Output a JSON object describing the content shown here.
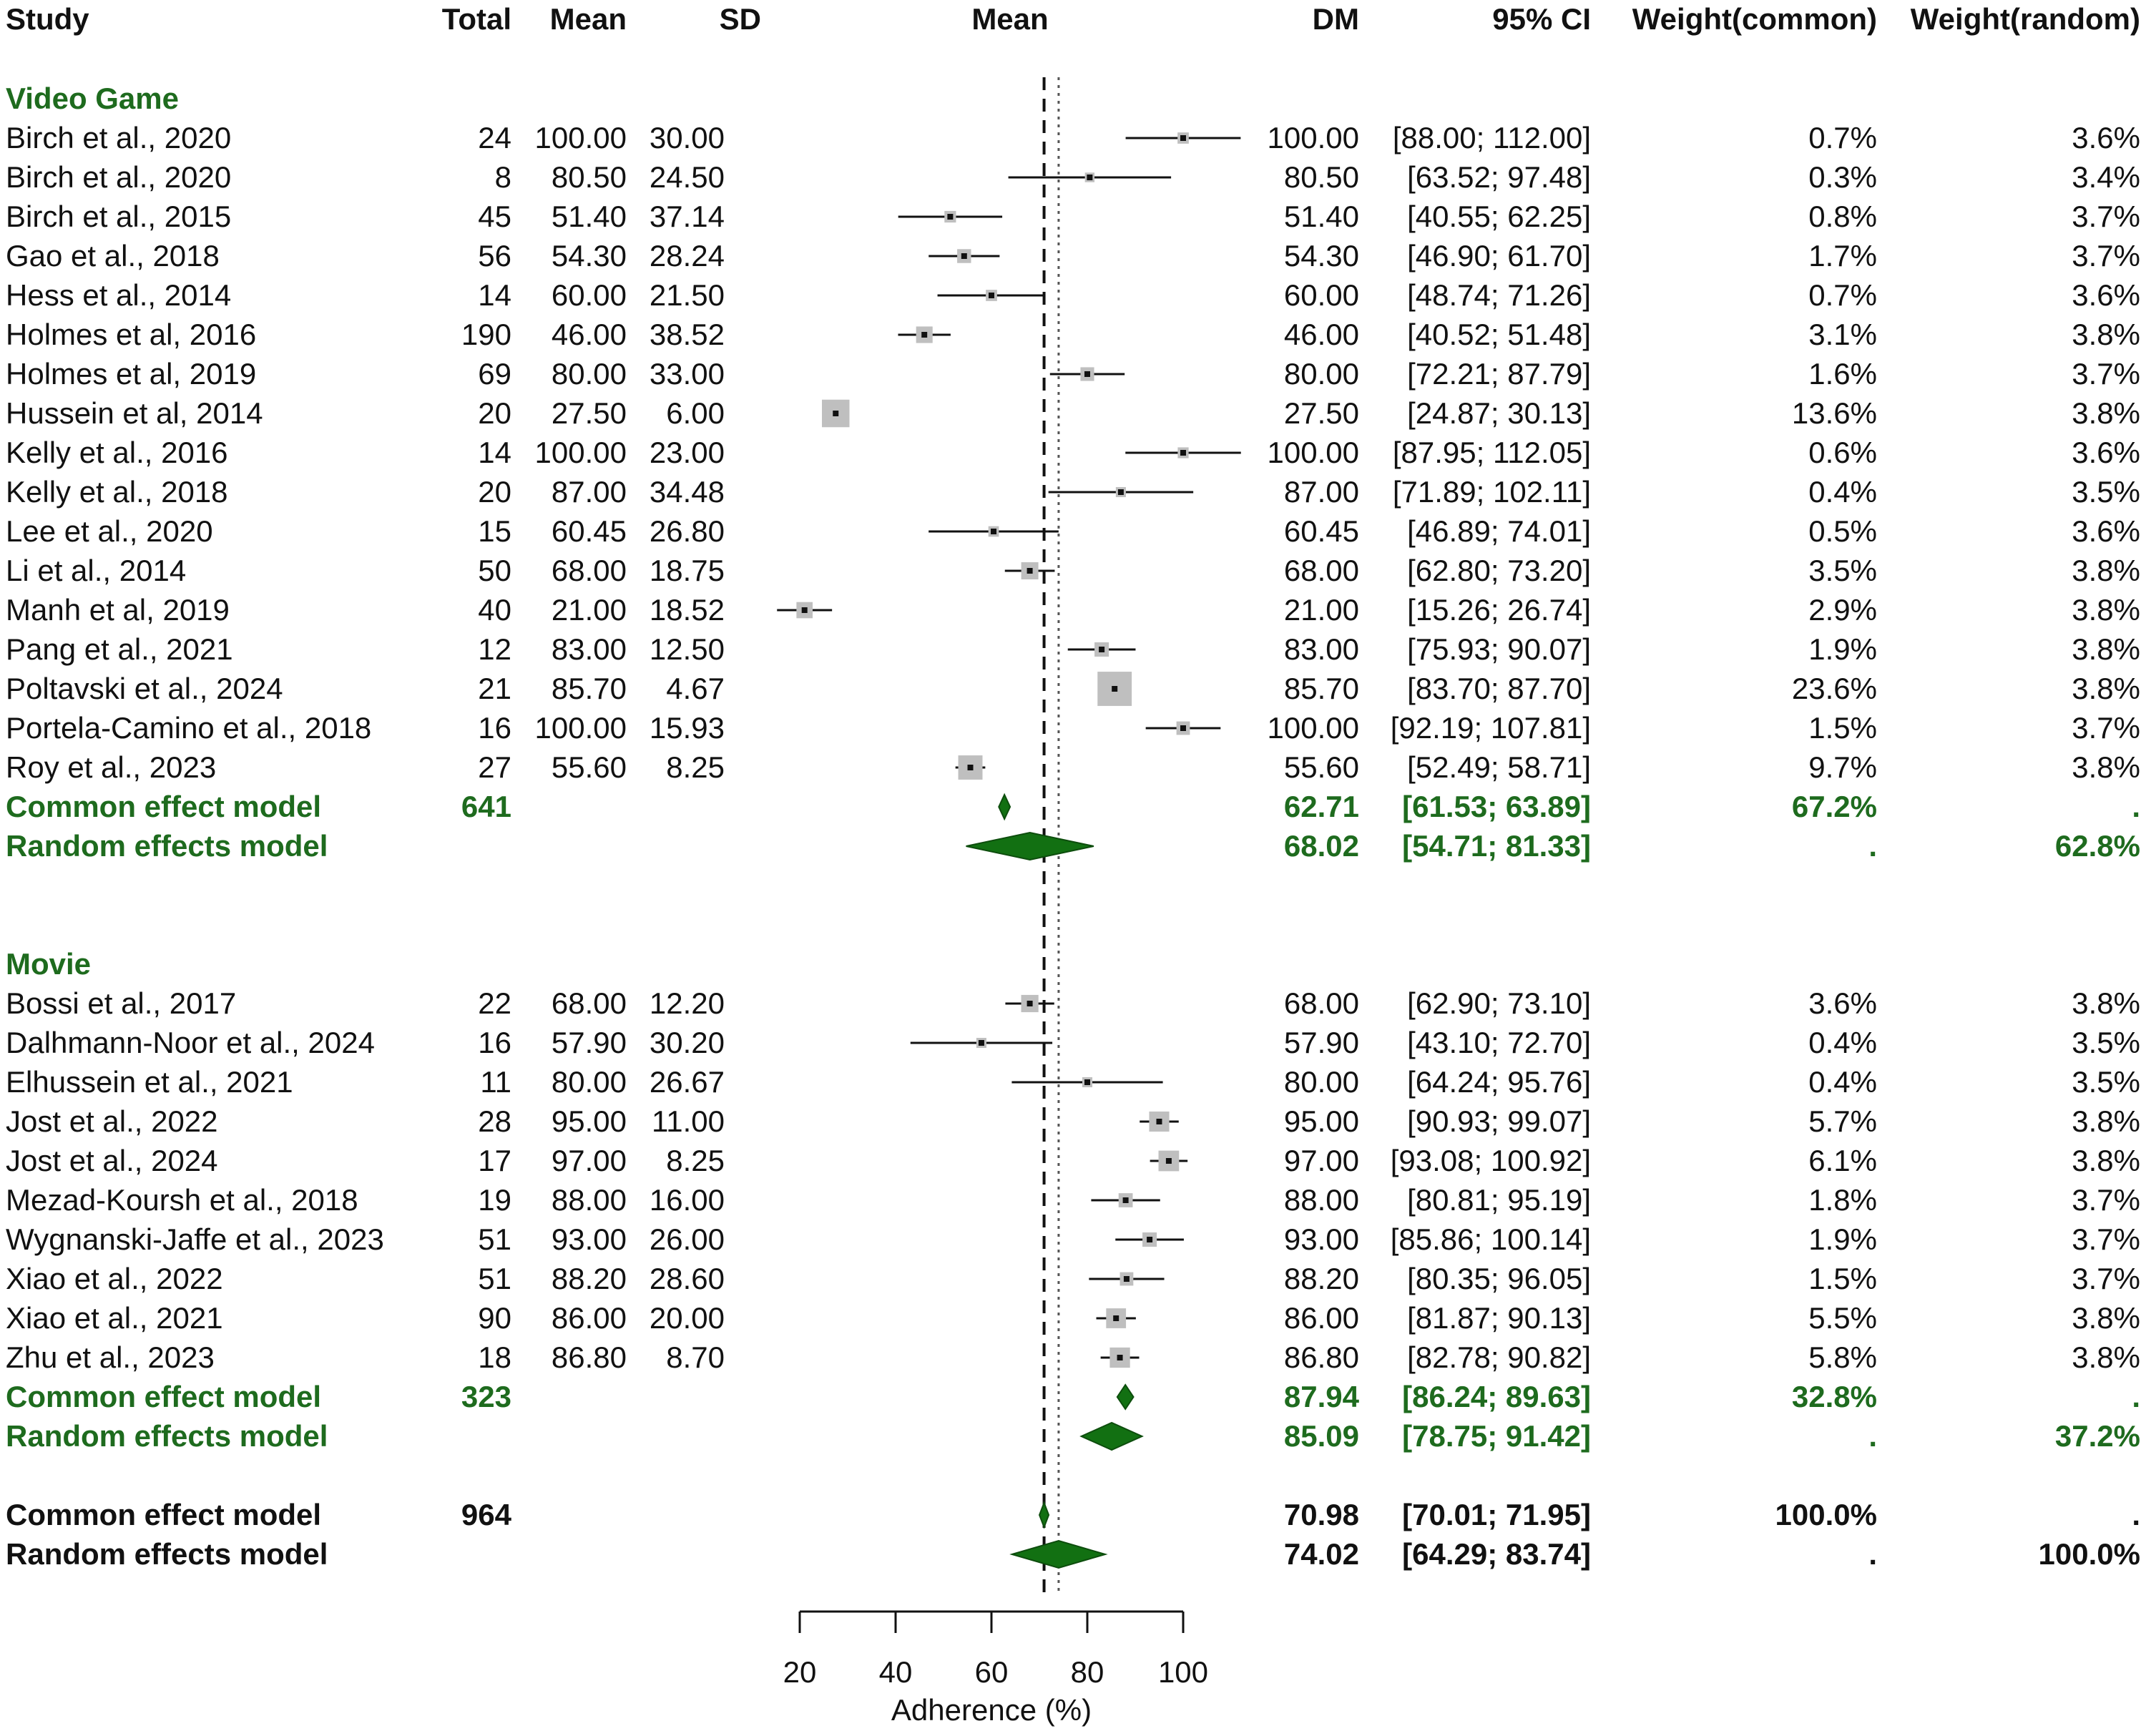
{
  "headers": {
    "study": "Study",
    "total": "Total",
    "mean": "Mean",
    "sd": "SD",
    "plot": "Mean",
    "dm": "DM",
    "ci": "95% CI",
    "wc": "Weight(common)",
    "wr": "Weight(random)"
  },
  "colors": {
    "group": "#1e6b1e",
    "diamond": "#127012",
    "box": "#bfbfbf",
    "text": "#111111"
  },
  "chart_data": {
    "type": "forest",
    "xlabel": "Adherence (%)",
    "xlim": [
      20,
      100
    ],
    "xticks": [
      20,
      40,
      60,
      80,
      100
    ],
    "reference_lines": {
      "common_dashed": 70.98,
      "random_dotted": 74.02
    },
    "groups": [
      {
        "name": "Video Game",
        "studies": [
          {
            "study": "Birch et al., 2020",
            "total": "24",
            "mean": "100.00",
            "sd": "30.00",
            "dm": "100.00",
            "ci": "[88.00; 112.00]",
            "wc": "0.7%",
            "wr": "3.6%",
            "est": 100.0,
            "lo": 88.0,
            "hi": 112.0,
            "w": 0.7
          },
          {
            "study": "Birch et al., 2020",
            "total": "8",
            "mean": "80.50",
            "sd": "24.50",
            "dm": "80.50",
            "ci": "[63.52; 97.48]",
            "wc": "0.3%",
            "wr": "3.4%",
            "est": 80.5,
            "lo": 63.52,
            "hi": 97.48,
            "w": 0.3
          },
          {
            "study": "Birch et al., 2015",
            "total": "45",
            "mean": "51.40",
            "sd": "37.14",
            "dm": "51.40",
            "ci": "[40.55; 62.25]",
            "wc": "0.8%",
            "wr": "3.7%",
            "est": 51.4,
            "lo": 40.55,
            "hi": 62.25,
            "w": 0.8
          },
          {
            "study": "Gao et al., 2018",
            "total": "56",
            "mean": "54.30",
            "sd": "28.24",
            "dm": "54.30",
            "ci": "[46.90; 61.70]",
            "wc": "1.7%",
            "wr": "3.7%",
            "est": 54.3,
            "lo": 46.9,
            "hi": 61.7,
            "w": 1.7
          },
          {
            "study": "Hess et al., 2014",
            "total": "14",
            "mean": "60.00",
            "sd": "21.50",
            "dm": "60.00",
            "ci": "[48.74; 71.26]",
            "wc": "0.7%",
            "wr": "3.6%",
            "est": 60.0,
            "lo": 48.74,
            "hi": 71.26,
            "w": 0.7
          },
          {
            "study": "Holmes et al, 2016",
            "total": "190",
            "mean": "46.00",
            "sd": "38.52",
            "dm": "46.00",
            "ci": "[40.52; 51.48]",
            "wc": "3.1%",
            "wr": "3.8%",
            "est": 46.0,
            "lo": 40.52,
            "hi": 51.48,
            "w": 3.1
          },
          {
            "study": "Holmes et al, 2019",
            "total": "69",
            "mean": "80.00",
            "sd": "33.00",
            "dm": "80.00",
            "ci": "[72.21; 87.79]",
            "wc": "1.6%",
            "wr": "3.7%",
            "est": 80.0,
            "lo": 72.21,
            "hi": 87.79,
            "w": 1.6
          },
          {
            "study": "Hussein et al, 2014",
            "total": "20",
            "mean": "27.50",
            "sd": "6.00",
            "dm": "27.50",
            "ci": "[24.87; 30.13]",
            "wc": "13.6%",
            "wr": "3.8%",
            "est": 27.5,
            "lo": 24.87,
            "hi": 30.13,
            "w": 13.6
          },
          {
            "study": "Kelly et al., 2016",
            "total": "14",
            "mean": "100.00",
            "sd": "23.00",
            "dm": "100.00",
            "ci": "[87.95; 112.05]",
            "wc": "0.6%",
            "wr": "3.6%",
            "est": 100.0,
            "lo": 87.95,
            "hi": 112.05,
            "w": 0.6
          },
          {
            "study": "Kelly et al., 2018",
            "total": "20",
            "mean": "87.00",
            "sd": "34.48",
            "dm": "87.00",
            "ci": "[71.89; 102.11]",
            "wc": "0.4%",
            "wr": "3.5%",
            "est": 87.0,
            "lo": 71.89,
            "hi": 102.11,
            "w": 0.4
          },
          {
            "study": "Lee et al., 2020",
            "total": "15",
            "mean": "60.45",
            "sd": "26.80",
            "dm": "60.45",
            "ci": "[46.89; 74.01]",
            "wc": "0.5%",
            "wr": "3.6%",
            "est": 60.45,
            "lo": 46.89,
            "hi": 74.01,
            "w": 0.5
          },
          {
            "study": "Li et al., 2014",
            "total": "50",
            "mean": "68.00",
            "sd": "18.75",
            "dm": "68.00",
            "ci": "[62.80; 73.20]",
            "wc": "3.5%",
            "wr": "3.8%",
            "est": 68.0,
            "lo": 62.8,
            "hi": 73.2,
            "w": 3.5
          },
          {
            "study": "Manh et al, 2019",
            "total": "40",
            "mean": "21.00",
            "sd": "18.52",
            "dm": "21.00",
            "ci": "[15.26; 26.74]",
            "wc": "2.9%",
            "wr": "3.8%",
            "est": 21.0,
            "lo": 15.26,
            "hi": 26.74,
            "w": 2.9
          },
          {
            "study": "Pang et al., 2021",
            "total": "12",
            "mean": "83.00",
            "sd": "12.50",
            "dm": "83.00",
            "ci": "[75.93; 90.07]",
            "wc": "1.9%",
            "wr": "3.8%",
            "est": 83.0,
            "lo": 75.93,
            "hi": 90.07,
            "w": 1.9
          },
          {
            "study": "Poltavski et al., 2024",
            "total": "21",
            "mean": "85.70",
            "sd": "4.67",
            "dm": "85.70",
            "ci": "[83.70; 87.70]",
            "wc": "23.6%",
            "wr": "3.8%",
            "est": 85.7,
            "lo": 83.7,
            "hi": 87.7,
            "w": 23.6
          },
          {
            "study": "Portela-Camino et al., 2018",
            "total": "16",
            "mean": "100.00",
            "sd": "15.93",
            "dm": "100.00",
            "ci": "[92.19; 107.81]",
            "wc": "1.5%",
            "wr": "3.7%",
            "est": 100.0,
            "lo": 92.19,
            "hi": 107.81,
            "w": 1.5
          },
          {
            "study": "Roy et al., 2023",
            "total": "27",
            "mean": "55.60",
            "sd": "8.25",
            "dm": "55.60",
            "ci": "[52.49; 58.71]",
            "wc": "9.7%",
            "wr": "3.8%",
            "est": 55.6,
            "lo": 52.49,
            "hi": 58.71,
            "w": 9.7
          }
        ],
        "common": {
          "label": "Common effect model",
          "total": "641",
          "dm": "62.71",
          "ci": "[61.53; 63.89]",
          "wc": "67.2%",
          "wr": ".",
          "est": 62.71,
          "lo": 61.53,
          "hi": 63.89
        },
        "random": {
          "label": "Random effects model",
          "dm": "68.02",
          "ci": "[54.71; 81.33]",
          "wc": ".",
          "wr": "62.8%",
          "est": 68.02,
          "lo": 54.71,
          "hi": 81.33
        }
      },
      {
        "name": "Movie",
        "studies": [
          {
            "study": "Bossi et al., 2017",
            "total": "22",
            "mean": "68.00",
            "sd": "12.20",
            "dm": "68.00",
            "ci": "[62.90; 73.10]",
            "wc": "3.6%",
            "wr": "3.8%",
            "est": 68.0,
            "lo": 62.9,
            "hi": 73.1,
            "w": 3.6
          },
          {
            "study": "Dalhmann-Noor et al., 2024",
            "total": "16",
            "mean": "57.90",
            "sd": "30.20",
            "dm": "57.90",
            "ci": "[43.10; 72.70]",
            "wc": "0.4%",
            "wr": "3.5%",
            "est": 57.9,
            "lo": 43.1,
            "hi": 72.7,
            "w": 0.4
          },
          {
            "study": "Elhussein et al., 2021",
            "total": "11",
            "mean": "80.00",
            "sd": "26.67",
            "dm": "80.00",
            "ci": "[64.24; 95.76]",
            "wc": "0.4%",
            "wr": "3.5%",
            "est": 80.0,
            "lo": 64.24,
            "hi": 95.76,
            "w": 0.4
          },
          {
            "study": "Jost et al., 2022",
            "total": "28",
            "mean": "95.00",
            "sd": "11.00",
            "dm": "95.00",
            "ci": "[90.93; 99.07]",
            "wc": "5.7%",
            "wr": "3.8%",
            "est": 95.0,
            "lo": 90.93,
            "hi": 99.07,
            "w": 5.7
          },
          {
            "study": "Jost et al., 2024",
            "total": "17",
            "mean": "97.00",
            "sd": "8.25",
            "dm": "97.00",
            "ci": "[93.08; 100.92]",
            "wc": "6.1%",
            "wr": "3.8%",
            "est": 97.0,
            "lo": 93.08,
            "hi": 100.92,
            "w": 6.1
          },
          {
            "study": "Mezad-Koursh et al., 2018",
            "total": "19",
            "mean": "88.00",
            "sd": "16.00",
            "dm": "88.00",
            "ci": "[80.81; 95.19]",
            "wc": "1.8%",
            "wr": "3.7%",
            "est": 88.0,
            "lo": 80.81,
            "hi": 95.19,
            "w": 1.8
          },
          {
            "study": "Wygnanski-Jaffe et al., 2023",
            "total": "51",
            "mean": "93.00",
            "sd": "26.00",
            "dm": "93.00",
            "ci": "[85.86; 100.14]",
            "wc": "1.9%",
            "wr": "3.7%",
            "est": 93.0,
            "lo": 85.86,
            "hi": 100.14,
            "w": 1.9
          },
          {
            "study": "Xiao et al., 2022",
            "total": "51",
            "mean": "88.20",
            "sd": "28.60",
            "dm": "88.20",
            "ci": "[80.35; 96.05]",
            "wc": "1.5%",
            "wr": "3.7%",
            "est": 88.2,
            "lo": 80.35,
            "hi": 96.05,
            "w": 1.5
          },
          {
            "study": "Xiao et al., 2021",
            "total": "90",
            "mean": "86.00",
            "sd": "20.00",
            "dm": "86.00",
            "ci": "[81.87; 90.13]",
            "wc": "5.5%",
            "wr": "3.8%",
            "est": 86.0,
            "lo": 81.87,
            "hi": 90.13,
            "w": 5.5
          },
          {
            "study": "Zhu et al., 2023",
            "total": "18",
            "mean": "86.80",
            "sd": "8.70",
            "dm": "86.80",
            "ci": "[82.78; 90.82]",
            "wc": "5.8%",
            "wr": "3.8%",
            "est": 86.8,
            "lo": 82.78,
            "hi": 90.82,
            "w": 5.8
          }
        ],
        "common": {
          "label": "Common effect model",
          "total": "323",
          "dm": "87.94",
          "ci": "[86.24; 89.63]",
          "wc": "32.8%",
          "wr": ".",
          "est": 87.94,
          "lo": 86.24,
          "hi": 89.63
        },
        "random": {
          "label": "Random effects model",
          "dm": "85.09",
          "ci": "[78.75; 91.42]",
          "wc": ".",
          "wr": "37.2%",
          "est": 85.09,
          "lo": 78.75,
          "hi": 91.42
        }
      }
    ],
    "overall": {
      "common": {
        "label": "Common effect model",
        "total": "964",
        "dm": "70.98",
        "ci": "[70.01; 71.95]",
        "wc": "100.0%",
        "wr": ".",
        "est": 70.98,
        "lo": 70.01,
        "hi": 71.95
      },
      "random": {
        "label": "Random effects model",
        "dm": "74.02",
        "ci": "[64.29; 83.74]",
        "wc": ".",
        "wr": "100.0%",
        "est": 74.02,
        "lo": 64.29,
        "hi": 83.74
      }
    }
  }
}
